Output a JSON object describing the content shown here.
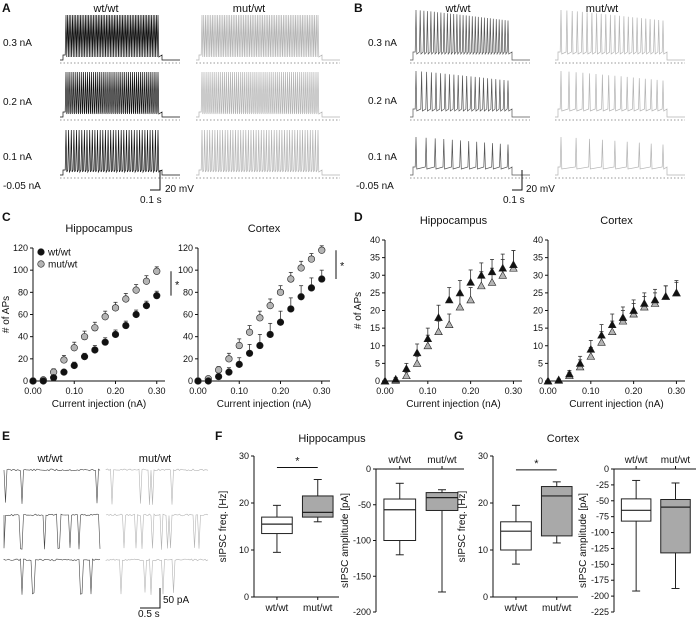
{
  "panels": {
    "A": {
      "label": "A",
      "col_labels": [
        "wt/wt",
        "mut/wt"
      ],
      "row_labels": [
        "0.3 nA",
        "0.2 nA",
        "0.1 nA"
      ],
      "holding": "-0.05 nA",
      "scale_v": "20 mV",
      "scale_t": "0.1 s"
    },
    "B": {
      "label": "B",
      "col_labels": [
        "wt/wt",
        "mut/wt"
      ],
      "row_labels": [
        "0.3 nA",
        "0.2 nA",
        "0.1 nA"
      ],
      "holding": "-0.05 nA",
      "scale_v": "20 mV",
      "scale_t": "0.1 s"
    },
    "C": {
      "label": "C"
    },
    "D": {
      "label": "D"
    },
    "E": {
      "label": "E",
      "col_labels": [
        "wt/wt",
        "mut/wt"
      ],
      "scale_i": "50 pA",
      "scale_t": "0.5 s"
    },
    "F": {
      "label": "F",
      "title": "Hippocampus"
    },
    "G": {
      "label": "G",
      "title": "Cortex"
    }
  },
  "colors": {
    "wt": "#111111",
    "mut": "#b4b4b4",
    "box_mut": "#a9a9a9",
    "axis": "#111111"
  },
  "chart_data": [
    {
      "id": "C-hippocampus",
      "type": "scatter",
      "title": "Hippocampus",
      "xlabel": "Current injection (nA)",
      "ylabel": "# of APs",
      "xlim": [
        0,
        0.32
      ],
      "ylim": [
        0,
        120
      ],
      "xticks": [
        "0.00",
        "0.10",
        "0.20",
        "0.30"
      ],
      "yticks": [
        "0",
        "20",
        "40",
        "60",
        "80",
        "100",
        "120"
      ],
      "marker": "circle",
      "significance": "*",
      "legend": [
        "wt/wt",
        "mut/wt"
      ],
      "x": [
        0.0,
        0.025,
        0.05,
        0.075,
        0.1,
        0.125,
        0.15,
        0.175,
        0.2,
        0.225,
        0.25,
        0.275,
        0.3
      ],
      "series": [
        {
          "name": "wt/wt",
          "values": [
            0,
            0,
            3,
            8,
            14,
            22,
            28,
            35,
            42,
            50,
            60,
            68,
            77
          ],
          "errors": [
            0,
            0,
            1,
            2,
            3,
            3,
            4,
            4,
            4,
            4,
            4,
            4,
            4
          ]
        },
        {
          "name": "mut/wt",
          "values": [
            0,
            1,
            8,
            19,
            30,
            40,
            48,
            58,
            66,
            74,
            82,
            90,
            99
          ],
          "errors": [
            0,
            1,
            3,
            4,
            5,
            5,
            5,
            5,
            5,
            5,
            5,
            5,
            4
          ]
        }
      ]
    },
    {
      "id": "C-cortex",
      "type": "scatter",
      "title": "Cortex",
      "xlabel": "Current injection (nA)",
      "ylabel": "",
      "xlim": [
        0,
        0.32
      ],
      "ylim": [
        0,
        120
      ],
      "xticks": [
        "0.00",
        "0.10",
        "0.20",
        "0.30"
      ],
      "yticks": [
        "0",
        "20",
        "40",
        "60",
        "80",
        "100",
        "120"
      ],
      "marker": "circle",
      "significance": "*",
      "x": [
        0.0,
        0.025,
        0.05,
        0.075,
        0.1,
        0.125,
        0.15,
        0.175,
        0.2,
        0.225,
        0.25,
        0.275,
        0.3
      ],
      "series": [
        {
          "name": "wt/wt",
          "values": [
            0,
            0,
            4,
            8,
            15,
            25,
            32,
            42,
            53,
            65,
            76,
            84,
            92
          ],
          "errors": [
            0,
            0,
            2,
            4,
            6,
            8,
            10,
            10,
            10,
            10,
            10,
            9,
            8
          ]
        },
        {
          "name": "mut/wt",
          "values": [
            0,
            2,
            10,
            20,
            32,
            44,
            57,
            68,
            80,
            92,
            102,
            110,
            118
          ],
          "errors": [
            0,
            1,
            3,
            5,
            6,
            6,
            6,
            6,
            6,
            6,
            6,
            5,
            4
          ]
        }
      ]
    },
    {
      "id": "D-hippocampus",
      "type": "scatter",
      "title": "Hippocampus",
      "xlabel": "Current injection (nA)",
      "ylabel": "# of APs",
      "xlim": [
        0,
        0.32
      ],
      "ylim": [
        0,
        40
      ],
      "xticks": [
        "0.00",
        "0.10",
        "0.20",
        "0.30"
      ],
      "yticks": [
        "0",
        "5",
        "10",
        "15",
        "20",
        "25",
        "30",
        "35",
        "40"
      ],
      "marker": "triangle",
      "x": [
        0.0,
        0.025,
        0.05,
        0.075,
        0.1,
        0.125,
        0.15,
        0.175,
        0.2,
        0.225,
        0.25,
        0.275,
        0.3
      ],
      "series": [
        {
          "name": "wt/wt",
          "values": [
            0,
            0.5,
            3.5,
            8,
            12,
            18,
            23,
            25,
            28,
            30,
            31,
            32,
            33
          ],
          "errors": [
            0,
            0.5,
            1.5,
            2.5,
            3,
            3.5,
            3.5,
            3.5,
            3.5,
            3.5,
            3.5,
            4,
            4
          ]
        },
        {
          "name": "mut/wt",
          "values": [
            0,
            0.2,
            1.5,
            5,
            10,
            14,
            16,
            21,
            23,
            27,
            28,
            30,
            32
          ],
          "errors": [
            0,
            0.3,
            1,
            2,
            3,
            3,
            3,
            3.5,
            3.5,
            4,
            4,
            4.5,
            5
          ]
        }
      ]
    },
    {
      "id": "D-cortex",
      "type": "scatter",
      "title": "Cortex",
      "xlabel": "Current injection (nA)",
      "ylabel": "",
      "xlim": [
        0,
        0.32
      ],
      "ylim": [
        0,
        40
      ],
      "xticks": [
        "0.00",
        "0.10",
        "0.20",
        "0.30"
      ],
      "yticks": [
        "0",
        "5",
        "10",
        "15",
        "20",
        "25",
        "30",
        "35",
        "40"
      ],
      "marker": "triangle",
      "x": [
        0.0,
        0.025,
        0.05,
        0.075,
        0.1,
        0.125,
        0.15,
        0.175,
        0.2,
        0.225,
        0.25,
        0.275,
        0.3
      ],
      "series": [
        {
          "name": "wt/wt",
          "values": [
            0,
            0.3,
            2,
            5,
            9,
            13,
            16,
            18,
            20,
            22,
            23,
            24,
            25
          ],
          "errors": [
            0,
            0.3,
            1,
            2,
            2.5,
            3,
            3,
            3,
            3,
            3,
            3,
            3,
            3.5
          ]
        },
        {
          "name": "mut/wt",
          "values": [
            0,
            0.2,
            1.5,
            4,
            7,
            11,
            14,
            17,
            19,
            21,
            22,
            24,
            25
          ],
          "errors": [
            0,
            0.2,
            1,
            2,
            2.5,
            3,
            3,
            3,
            3,
            3,
            3,
            3,
            3
          ]
        }
      ]
    },
    {
      "id": "F-freq",
      "type": "box",
      "ylabel": "sIPSC freq. [Hz]",
      "categories": [
        "wt/wt",
        "mut/wt"
      ],
      "ylim": [
        0,
        30
      ],
      "yticks": [
        "0",
        "10",
        "20",
        "30"
      ],
      "significance": "*",
      "boxes": [
        {
          "name": "wt/wt",
          "whisker_low": 9.5,
          "q1": 13.5,
          "median": 15.5,
          "q3": 17,
          "whisker_high": 19.5
        },
        {
          "name": "mut/wt",
          "whisker_low": 16,
          "q1": 17,
          "median": 18,
          "q3": 21.5,
          "whisker_high": 25
        }
      ]
    },
    {
      "id": "F-amp",
      "type": "box",
      "ylabel": "sIPSC amplitude [pA]",
      "categories": [
        "wt/wt",
        "mut/wt"
      ],
      "category_position": "top",
      "ylim": [
        -200,
        0
      ],
      "yticks": [
        "0",
        "-50",
        "-100",
        "-150",
        "-200"
      ],
      "boxes": [
        {
          "name": "wt/wt",
          "whisker_low": -120,
          "q1": -100,
          "median": -57,
          "q3": -42,
          "whisker_high": -20
        },
        {
          "name": "mut/wt",
          "whisker_low": -172,
          "q1": -58,
          "median": -40,
          "q3": -33,
          "whisker_high": -29
        }
      ]
    },
    {
      "id": "G-freq",
      "type": "box",
      "ylabel": "sIPSC freq. [Hz]",
      "categories": [
        "wt/wt",
        "mut/wt"
      ],
      "ylim": [
        0,
        30
      ],
      "yticks": [
        "0",
        "10",
        "20",
        "30"
      ],
      "significance": "*",
      "boxes": [
        {
          "name": "wt/wt",
          "whisker_low": 7,
          "q1": 10,
          "median": 14,
          "q3": 16,
          "whisker_high": 19.5
        },
        {
          "name": "mut/wt",
          "whisker_low": 11.5,
          "q1": 13,
          "median": 21.5,
          "q3": 23.5,
          "whisker_high": 24.5
        }
      ]
    },
    {
      "id": "G-amp",
      "type": "box",
      "ylabel": "sIPSC amplitude [pA]",
      "categories": [
        "wt/wt",
        "mut/wt"
      ],
      "category_position": "top",
      "ylim": [
        -225,
        0
      ],
      "yticks": [
        "0",
        "-25",
        "-50",
        "-75",
        "-100",
        "-125",
        "-150",
        "-175",
        "-200",
        "-225"
      ],
      "boxes": [
        {
          "name": "wt/wt",
          "whisker_low": -192,
          "q1": -82,
          "median": -65,
          "q3": -47,
          "whisker_high": -18
        },
        {
          "name": "mut/wt",
          "whisker_low": -188,
          "q1": -132,
          "median": -60,
          "q3": -48,
          "whisker_high": -22
        }
      ]
    }
  ]
}
